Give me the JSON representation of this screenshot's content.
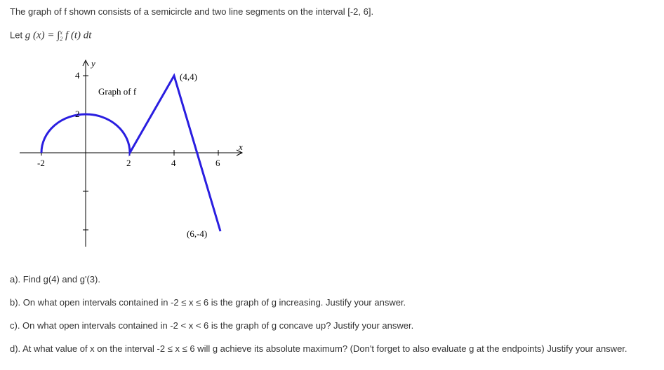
{
  "intro": "The graph of f shown consists of a semicircle and two line segments on the interval [-2, 6].",
  "definition": {
    "prefix": "Let",
    "expression": "g (x) = ∫",
    "upper": "x",
    "lower": "2",
    "integrand": "f (t) dt"
  },
  "graph": {
    "title": "Graph of f",
    "x_axis_label": "x",
    "y_axis_label": "y",
    "x_tick_labels": [
      "-2",
      "2",
      "4",
      "6"
    ],
    "y_tick_labels": [
      "4",
      "2"
    ],
    "point_labels": [
      "(4,4)",
      "(6,-4)"
    ]
  },
  "questions": [
    "a). Find g(4) and g'(3).",
    "b). On what open intervals contained in -2 ≤ x ≤ 6 is the graph of g increasing.  Justify your answer.",
    "c). On what open intervals contained in -2 < x < 6 is the graph of g concave up?  Justify your answer.",
    "d). At what value of x on the interval -2 ≤ x ≤ 6  will g achieve its absolute maximum?  (Don't forget to also evaluate g at the endpoints)  Justify your answer."
  ]
}
